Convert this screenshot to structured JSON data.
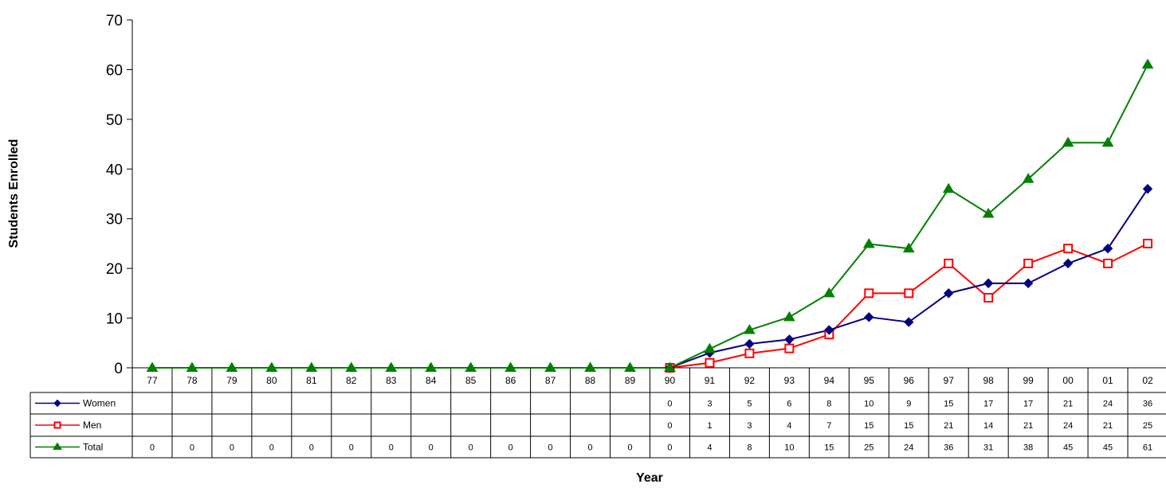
{
  "chart_data": {
    "type": "line",
    "title": "",
    "xlabel": "Year",
    "ylabel": "Students Enrolled",
    "ylim": [
      0,
      70
    ],
    "yticks": [
      0,
      10,
      20,
      30,
      40,
      50,
      60,
      70
    ],
    "grid": false,
    "legend": "data-table-left",
    "categories": [
      "77",
      "78",
      "79",
      "80",
      "81",
      "82",
      "83",
      "84",
      "85",
      "86",
      "87",
      "88",
      "89",
      "90",
      "91",
      "92",
      "93",
      "94",
      "95",
      "96",
      "97",
      "98",
      "99",
      "00",
      "01",
      "02"
    ],
    "series": [
      {
        "name": "Women",
        "color": "#000080",
        "marker": "diamond",
        "values": [
          null,
          null,
          null,
          null,
          null,
          null,
          null,
          null,
          null,
          null,
          null,
          null,
          null,
          0,
          3,
          5,
          6,
          8,
          10,
          9,
          15,
          17,
          17,
          21,
          24,
          36
        ],
        "plot_values": [
          null,
          null,
          null,
          null,
          null,
          null,
          null,
          null,
          null,
          null,
          null,
          null,
          null,
          0,
          3,
          4.8,
          5.7,
          7.6,
          10.2,
          9.2,
          15,
          17,
          17,
          21,
          24,
          36
        ]
      },
      {
        "name": "Men",
        "color": "#ff0000",
        "marker": "square-open",
        "values": [
          null,
          null,
          null,
          null,
          null,
          null,
          null,
          null,
          null,
          null,
          null,
          null,
          null,
          0,
          1,
          3,
          4,
          7,
          15,
          15,
          21,
          14,
          21,
          24,
          21,
          25
        ],
        "plot_values": [
          null,
          null,
          null,
          null,
          null,
          null,
          null,
          null,
          null,
          null,
          null,
          null,
          null,
          0,
          1,
          2.9,
          3.9,
          6.7,
          15,
          15,
          21,
          14.1,
          21,
          24,
          21,
          25
        ]
      },
      {
        "name": "Total",
        "color": "#008000",
        "marker": "triangle",
        "values": [
          0,
          0,
          0,
          0,
          0,
          0,
          0,
          0,
          0,
          0,
          0,
          0,
          0,
          0,
          4,
          8,
          10,
          15,
          25,
          24,
          36,
          31,
          38,
          45,
          45,
          61
        ],
        "plot_values": [
          0,
          0,
          0,
          0,
          0,
          0,
          0,
          0,
          0,
          0,
          0,
          0,
          0,
          0,
          3.8,
          7.6,
          10.2,
          15,
          24.9,
          24,
          36,
          31,
          38,
          45.3,
          45.3,
          61
        ]
      }
    ]
  }
}
